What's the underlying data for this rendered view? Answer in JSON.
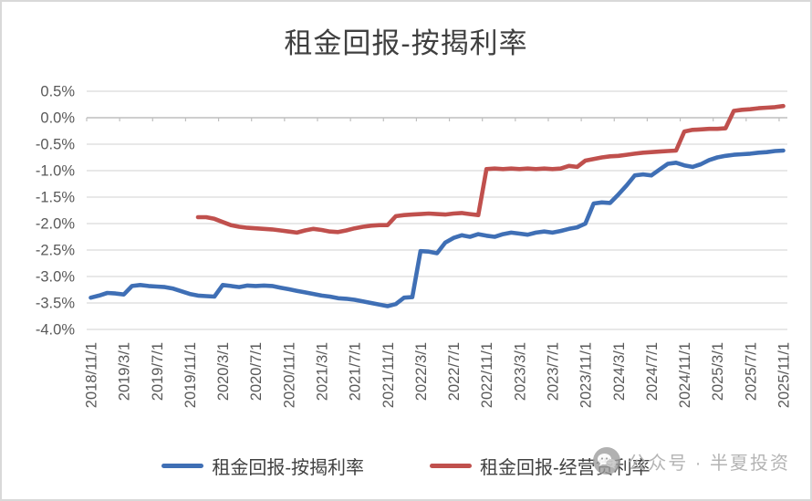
{
  "chart_title": "租金回报-按揭利率",
  "legend": {
    "items": [
      {
        "label": "租金回报-按揭利率",
        "color": "#3f6fb5"
      },
      {
        "label": "租金回报-经营贷利率",
        "color": "#c0504d"
      }
    ]
  },
  "watermark": {
    "icon": "wechat-chat-bubble-icon",
    "text": "公众号 · 半夏投资",
    "color": "#aeaeae"
  },
  "colors": {
    "background": "#ffffff",
    "border": "#d9d9d9",
    "gridline": "#d9d9d9",
    "axis_line": "#bfbfbf",
    "tick_label": "#595959",
    "title_text": "#3f3f3f",
    "legend_text": "#404040"
  },
  "chart_data": {
    "type": "line",
    "title": "租金回报-按揭利率",
    "xlabel": "",
    "ylabel": "",
    "ylim": [
      -4.0,
      0.5
    ],
    "y_tick_step": 0.5,
    "y_tick_labels": [
      "0.5%",
      "0.0%",
      "-0.5%",
      "-1.0%",
      "-1.5%",
      "-2.0%",
      "-2.5%",
      "-3.0%",
      "-3.5%",
      "-4.0%"
    ],
    "x_label_every": 4,
    "grid": "horizontal",
    "legend_position": "bottom",
    "months": [
      "2018/11/1",
      "2018/12/1",
      "2019/1/1",
      "2019/2/1",
      "2019/3/1",
      "2019/4/1",
      "2019/5/1",
      "2019/6/1",
      "2019/7/1",
      "2019/8/1",
      "2019/9/1",
      "2019/10/1",
      "2019/11/1",
      "2019/12/1",
      "2020/1/1",
      "2020/2/1",
      "2020/3/1",
      "2020/4/1",
      "2020/5/1",
      "2020/6/1",
      "2020/7/1",
      "2020/8/1",
      "2020/9/1",
      "2020/10/1",
      "2020/11/1",
      "2020/12/1",
      "2021/1/1",
      "2021/2/1",
      "2021/3/1",
      "2021/4/1",
      "2021/5/1",
      "2021/6/1",
      "2021/7/1",
      "2021/8/1",
      "2021/9/1",
      "2021/10/1",
      "2021/11/1",
      "2021/12/1",
      "2022/1/1",
      "2022/2/1",
      "2022/3/1",
      "2022/4/1",
      "2022/5/1",
      "2022/6/1",
      "2022/7/1",
      "2022/8/1",
      "2022/9/1",
      "2022/10/1",
      "2022/11/1",
      "2022/12/1",
      "2023/1/1",
      "2023/2/1",
      "2023/3/1",
      "2023/4/1",
      "2023/5/1",
      "2023/6/1",
      "2023/7/1",
      "2023/8/1",
      "2023/9/1",
      "2023/10/1",
      "2023/11/1",
      "2023/12/1",
      "2024/1/1",
      "2024/2/1",
      "2024/3/1",
      "2024/4/1",
      "2024/5/1",
      "2024/6/1",
      "2024/7/1",
      "2024/8/1",
      "2024/9/1",
      "2024/10/1",
      "2024/11/1",
      "2024/12/1",
      "2025/1/1",
      "2025/2/1",
      "2025/3/1",
      "2025/4/1",
      "2025/5/1",
      "2025/6/1",
      "2025/7/1",
      "2025/8/1",
      "2025/9/1",
      "2025/10/1",
      "2025/11/1"
    ],
    "series": [
      {
        "name": "租金回报-按揭利率",
        "color": "#3f6fb5",
        "start_month": "2018/11/1",
        "start_index": 0,
        "values": [
          -3.4,
          -3.36,
          -3.31,
          -3.32,
          -3.34,
          -3.18,
          -3.16,
          -3.18,
          -3.19,
          -3.2,
          -3.23,
          -3.28,
          -3.33,
          -3.36,
          -3.37,
          -3.38,
          -3.16,
          -3.18,
          -3.2,
          -3.17,
          -3.18,
          -3.17,
          -3.18,
          -3.21,
          -3.24,
          -3.27,
          -3.3,
          -3.33,
          -3.36,
          -3.38,
          -3.41,
          -3.42,
          -3.44,
          -3.47,
          -3.5,
          -3.53,
          -3.56,
          -3.52,
          -3.4,
          -3.39,
          -2.52,
          -2.53,
          -2.56,
          -2.36,
          -2.27,
          -2.22,
          -2.25,
          -2.2,
          -2.23,
          -2.25,
          -2.2,
          -2.17,
          -2.19,
          -2.21,
          -2.17,
          -2.15,
          -2.17,
          -2.14,
          -2.1,
          -2.07,
          -2.0,
          -1.62,
          -1.6,
          -1.61,
          -1.45,
          -1.28,
          -1.09,
          -1.07,
          -1.09,
          -0.98,
          -0.87,
          -0.85,
          -0.9,
          -0.93,
          -0.88,
          -0.8,
          -0.75,
          -0.72,
          -0.7,
          -0.69,
          -0.68,
          -0.66,
          -0.65,
          -0.63,
          -0.62
        ]
      },
      {
        "name": "租金回报-经营贷利率",
        "color": "#c0504d",
        "start_month": "2019/12/1",
        "start_index": 13,
        "values": [
          -1.88,
          -1.88,
          -1.91,
          -1.97,
          -2.03,
          -2.06,
          -2.08,
          -2.09,
          -2.1,
          -2.11,
          -2.13,
          -2.15,
          -2.17,
          -2.13,
          -2.1,
          -2.12,
          -2.15,
          -2.16,
          -2.13,
          -2.09,
          -2.06,
          -2.04,
          -2.03,
          -2.03,
          -1.86,
          -1.84,
          -1.83,
          -1.82,
          -1.81,
          -1.82,
          -1.83,
          -1.81,
          -1.8,
          -1.82,
          -1.84,
          -0.97,
          -0.96,
          -0.97,
          -0.96,
          -0.97,
          -0.96,
          -0.97,
          -0.96,
          -0.97,
          -0.96,
          -0.91,
          -0.93,
          -0.81,
          -0.78,
          -0.75,
          -0.73,
          -0.72,
          -0.7,
          -0.68,
          -0.66,
          -0.65,
          -0.64,
          -0.63,
          -0.62,
          -0.26,
          -0.23,
          -0.22,
          -0.21,
          -0.21,
          -0.2,
          0.13,
          0.15,
          0.16,
          0.18,
          0.19,
          0.2,
          0.22
        ]
      }
    ]
  }
}
